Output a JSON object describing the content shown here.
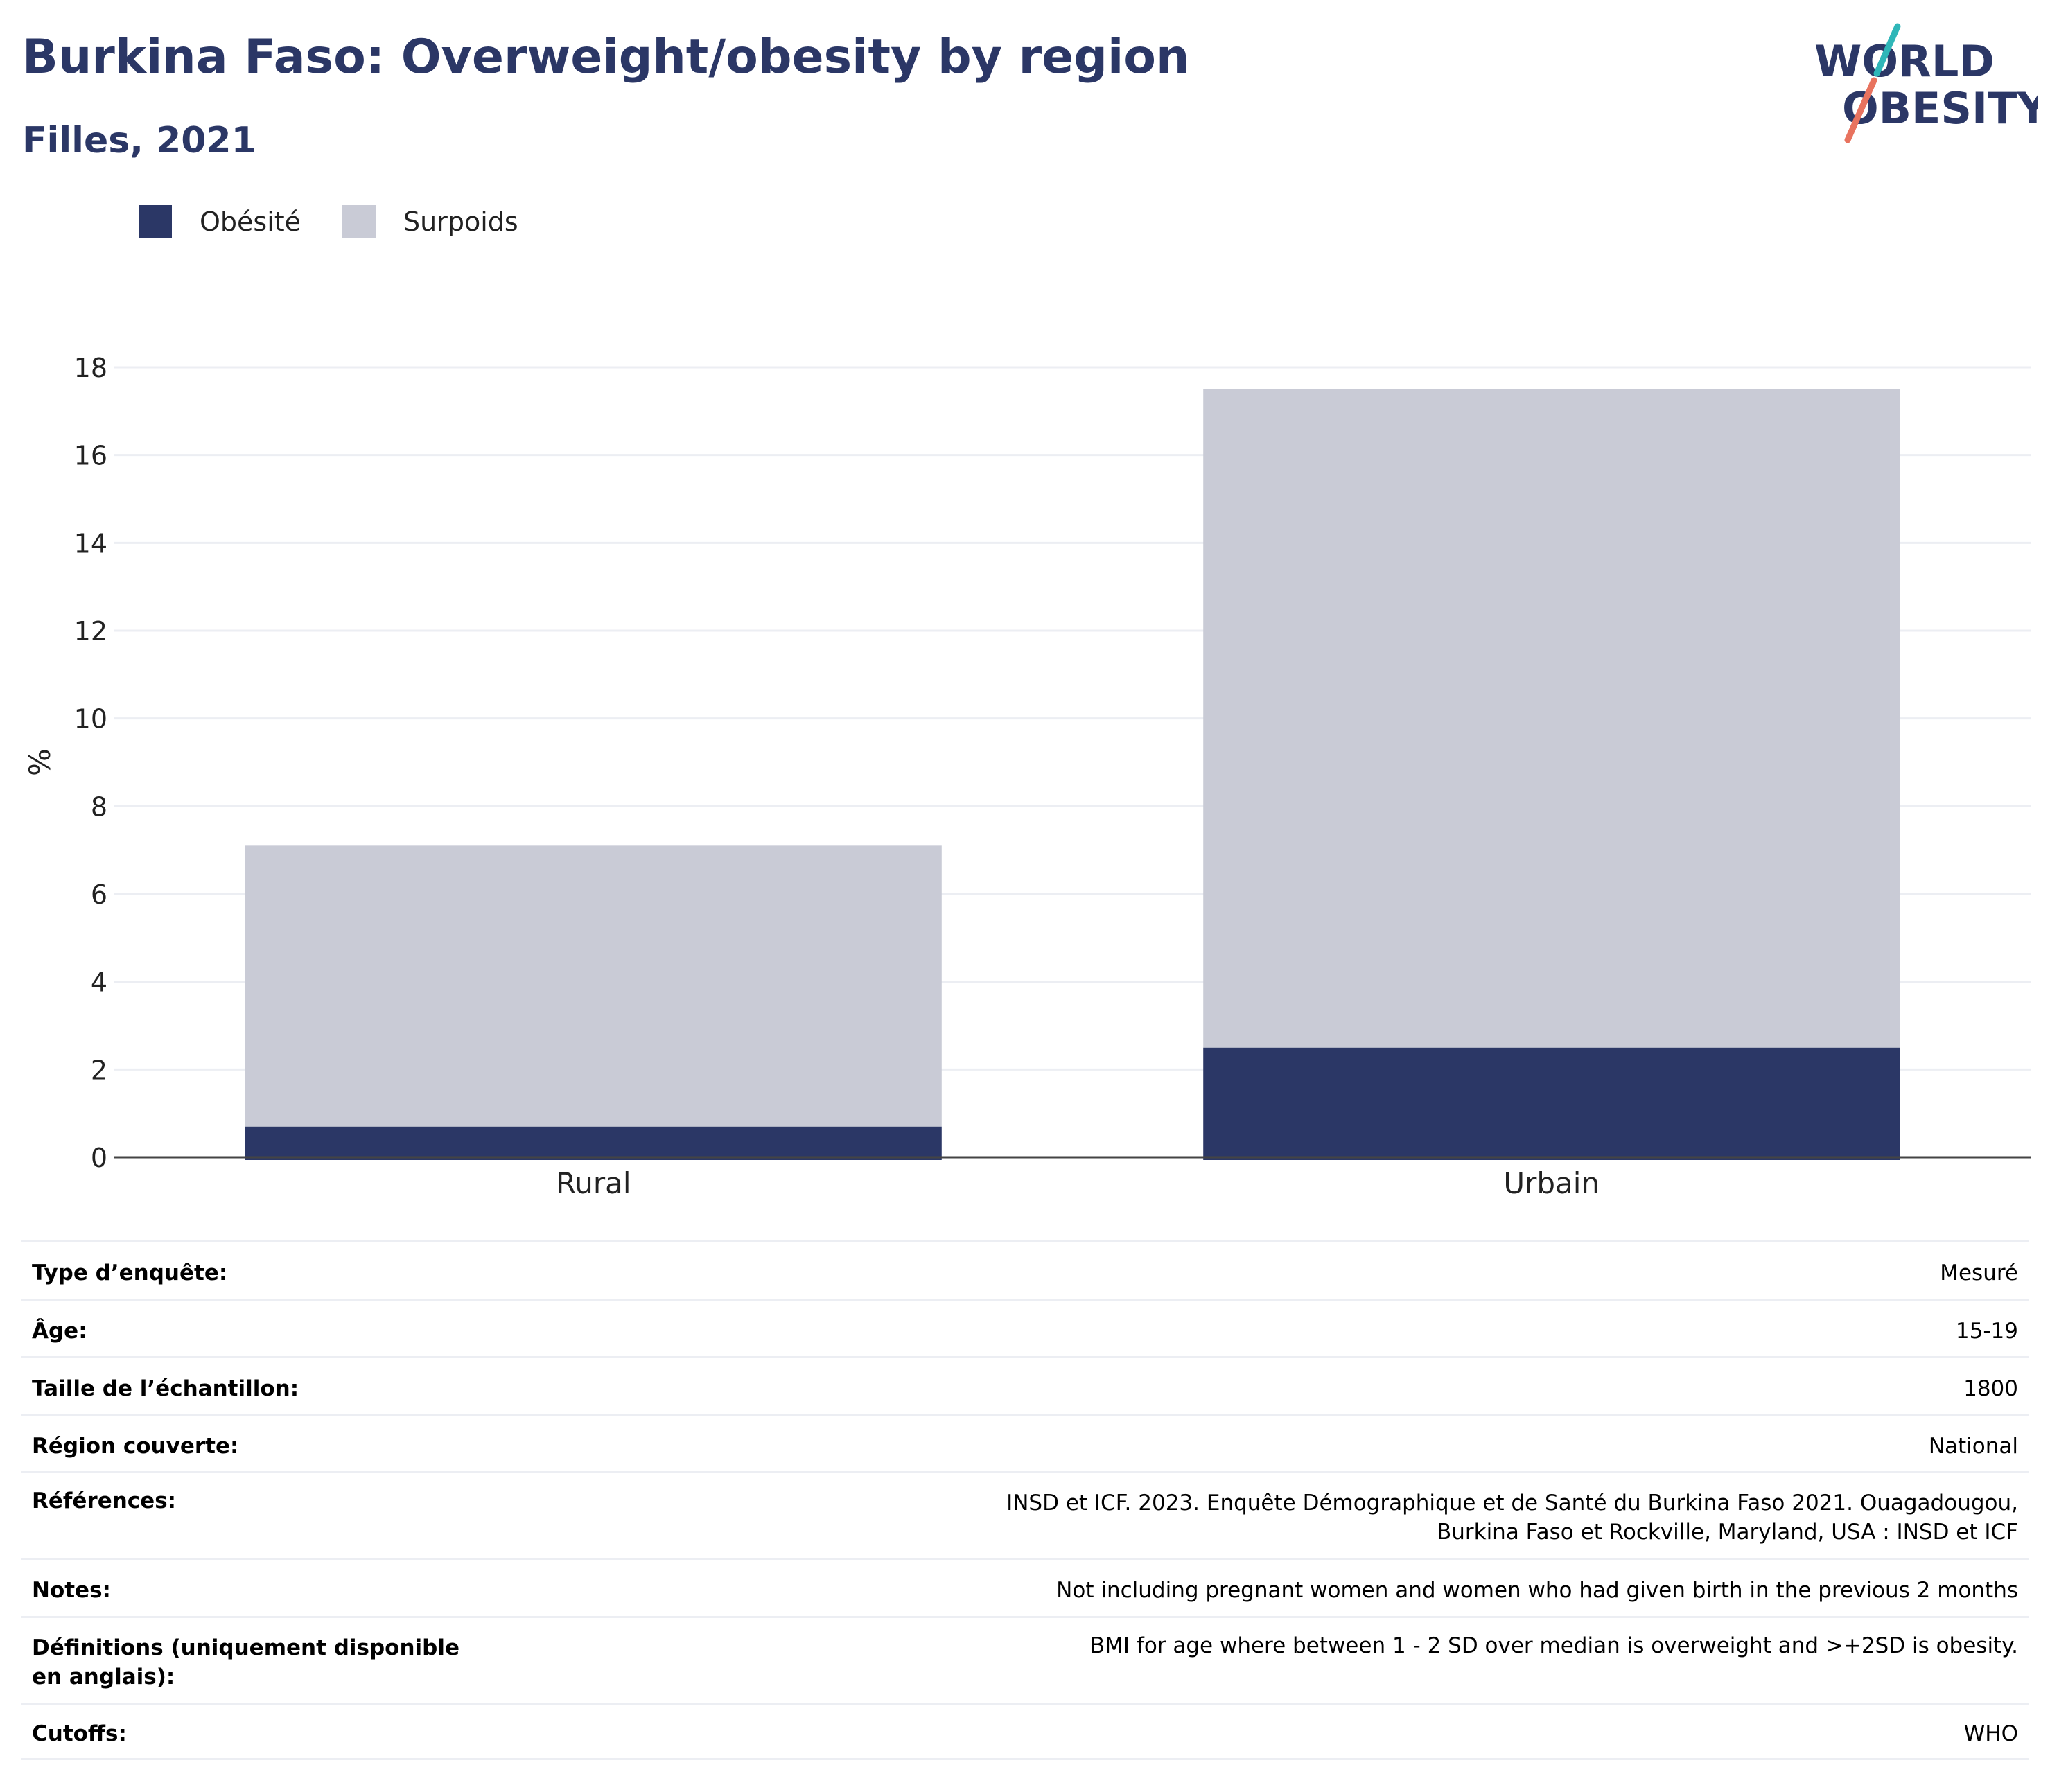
{
  "header": {
    "title": "Burkina Faso: Overweight/obesity by region",
    "subtitle": "Filles, 2021"
  },
  "logo": {
    "line1": "WORLD",
    "line2": "OBESITY",
    "colors": {
      "text": "#2b3766",
      "slash_top": "#2fb6b8",
      "slash_bottom": "#e8735f"
    }
  },
  "legend": {
    "items": [
      {
        "label": "Obésité",
        "color": "#2b3766"
      },
      {
        "label": "Surpoids",
        "color": "#c9cbd6"
      }
    ]
  },
  "chart_data": {
    "type": "bar",
    "stacked": true,
    "categories": [
      "Rural",
      "Urbain"
    ],
    "series": [
      {
        "name": "Obésité",
        "color": "#2b3766",
        "values": [
          0.7,
          2.5
        ]
      },
      {
        "name": "Surpoids",
        "color": "#c9cbd6",
        "values": [
          6.4,
          15.0
        ]
      }
    ],
    "ylabel": "%",
    "xlabel": "",
    "ylim": [
      0,
      18
    ],
    "yticks": [
      0,
      2,
      4,
      6,
      8,
      10,
      12,
      14,
      16,
      18
    ],
    "grid": true,
    "legend_position": "top-left"
  },
  "meta": {
    "rows": [
      {
        "label": "Type d’enquête:",
        "value": "Mesuré"
      },
      {
        "label": "Âge:",
        "value": "15-19"
      },
      {
        "label": "Taille de l’échantillon:",
        "value": "1800"
      },
      {
        "label": "Région couverte:",
        "value": "National"
      },
      {
        "label": "Références:",
        "value": "INSD et ICF. 2023. Enquête Démographique et de Santé du Burkina Faso 2021. Ouagadougou, Burkina Faso et Rockville, Maryland, USA : INSD et ICF"
      },
      {
        "label": "Notes:",
        "value": "Not including pregnant women and women who had given birth in the previous 2 months"
      },
      {
        "label": "Définitions (uniquement disponible en anglais):",
        "value": "BMI for age where between 1 - 2 SD over median is overweight and >+2SD is obesity."
      },
      {
        "label": "Cutoffs:",
        "value": "WHO"
      }
    ]
  }
}
